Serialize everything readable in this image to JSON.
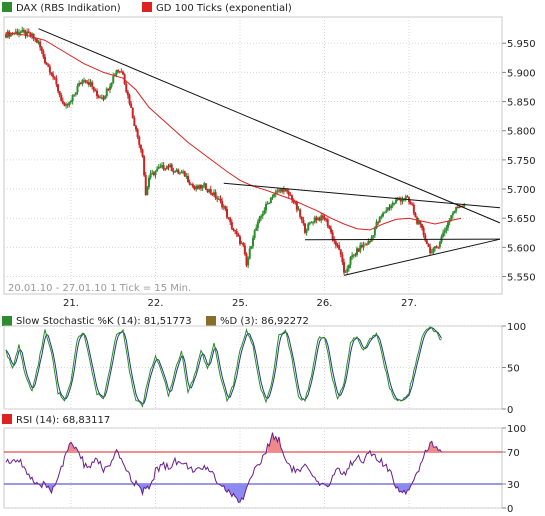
{
  "chart_data": [
    {
      "type": "candlestick",
      "legend": [
        {
          "name": "DAX (RBS Indikation)",
          "color": "#2e8b2e"
        },
        {
          "name": "GD 100 Ticks (exponential)",
          "color": "#dd2222"
        }
      ],
      "range_label": "20.01.10 - 27.01.10   1 Tick = 15 Min.",
      "x_ticks": [
        {
          "label": "21.",
          "t": 20
        },
        {
          "label": "22.",
          "t": 46
        },
        {
          "label": "25.",
          "t": 72
        },
        {
          "label": "26.",
          "t": 98
        },
        {
          "label": "27.",
          "t": 124
        }
      ],
      "ylim": [
        5520,
        5995
      ],
      "y_ticks": [
        {
          "label": "5.950",
          "v": 5950
        },
        {
          "label": "5.900",
          "v": 5900
        },
        {
          "label": "5.850",
          "v": 5850
        },
        {
          "label": "5.800",
          "v": 5800
        },
        {
          "label": "5.750",
          "v": 5750
        },
        {
          "label": "5.700",
          "v": 5700
        },
        {
          "label": "5.650",
          "v": 5650
        },
        {
          "label": "5.600",
          "v": 5600
        },
        {
          "label": "5.550",
          "v": 5550
        }
      ],
      "x_range": [
        0,
        152
      ],
      "price_path": [
        [
          0,
          5965
        ],
        [
          4,
          5970
        ],
        [
          8,
          5962
        ],
        [
          10,
          5950
        ],
        [
          12,
          5920
        ],
        [
          14,
          5900
        ],
        [
          16,
          5870
        ],
        [
          18,
          5838
        ],
        [
          20,
          5850
        ],
        [
          22,
          5875
        ],
        [
          24,
          5890
        ],
        [
          26,
          5880
        ],
        [
          28,
          5860
        ],
        [
          30,
          5858
        ],
        [
          32,
          5880
        ],
        [
          34,
          5905
        ],
        [
          36,
          5900
        ],
        [
          37,
          5870
        ],
        [
          38,
          5850
        ],
        [
          40,
          5800
        ],
        [
          42,
          5760
        ],
        [
          43,
          5690
        ],
        [
          44,
          5720
        ],
        [
          47,
          5735
        ],
        [
          50,
          5740
        ],
        [
          52,
          5730
        ],
        [
          55,
          5725
        ],
        [
          58,
          5700
        ],
        [
          61,
          5705
        ],
        [
          64,
          5690
        ],
        [
          67,
          5670
        ],
        [
          69,
          5640
        ],
        [
          71,
          5620
        ],
        [
          73,
          5600
        ],
        [
          74,
          5568
        ],
        [
          76,
          5620
        ],
        [
          79,
          5660
        ],
        [
          82,
          5690
        ],
        [
          85,
          5700
        ],
        [
          88,
          5685
        ],
        [
          90,
          5660
        ],
        [
          92,
          5630
        ],
        [
          95,
          5650
        ],
        [
          98,
          5650
        ],
        [
          99,
          5640
        ],
        [
          101,
          5610
        ],
        [
          103,
          5590
        ],
        [
          104,
          5552
        ],
        [
          106,
          5580
        ],
        [
          109,
          5600
        ],
        [
          112,
          5610
        ],
        [
          114,
          5640
        ],
        [
          117,
          5665
        ],
        [
          120,
          5680
        ],
        [
          123,
          5685
        ],
        [
          125,
          5670
        ],
        [
          126,
          5650
        ],
        [
          128,
          5630
        ],
        [
          130,
          5600
        ],
        [
          131,
          5590
        ],
        [
          133,
          5605
        ],
        [
          135,
          5630
        ],
        [
          137,
          5655
        ],
        [
          139,
          5670
        ],
        [
          141,
          5675
        ]
      ],
      "ema_path": [
        [
          0,
          5968
        ],
        [
          6,
          5964
        ],
        [
          12,
          5955
        ],
        [
          18,
          5935
        ],
        [
          24,
          5915
        ],
        [
          30,
          5900
        ],
        [
          36,
          5890
        ],
        [
          40,
          5870
        ],
        [
          44,
          5840
        ],
        [
          50,
          5810
        ],
        [
          56,
          5780
        ],
        [
          62,
          5755
        ],
        [
          68,
          5730
        ],
        [
          72,
          5715
        ],
        [
          76,
          5705
        ],
        [
          80,
          5698
        ],
        [
          84,
          5690
        ],
        [
          88,
          5682
        ],
        [
          92,
          5672
        ],
        [
          96,
          5662
        ],
        [
          100,
          5650
        ],
        [
          104,
          5640
        ],
        [
          108,
          5632
        ],
        [
          112,
          5630
        ],
        [
          116,
          5640
        ],
        [
          120,
          5648
        ],
        [
          124,
          5650
        ],
        [
          128,
          5645
        ],
        [
          132,
          5640
        ],
        [
          136,
          5645
        ],
        [
          140,
          5650
        ]
      ],
      "trend_lines": [
        {
          "from": [
            10,
            5975
          ],
          "to": [
            152,
            5642
          ]
        },
        {
          "from": [
            67,
            5710
          ],
          "to": [
            152,
            5668
          ]
        },
        {
          "from": [
            92,
            5613
          ],
          "to": [
            152,
            5614
          ]
        },
        {
          "from": [
            104,
            5552
          ],
          "to": [
            152,
            5614
          ]
        }
      ]
    },
    {
      "type": "line",
      "series": [
        {
          "name": "Slow Stochastic %K (14): 81,51773",
          "color": "#2e8b2e"
        },
        {
          "name": "%D (3): 86,92272",
          "color": "#1a3d7a"
        }
      ],
      "ylim": [
        0,
        100
      ],
      "y_ticks": [
        {
          "label": "100",
          "v": 100
        },
        {
          "label": "50",
          "v": 50
        },
        {
          "label": "0",
          "v": 0
        }
      ],
      "x_range": [
        0,
        152
      ],
      "values_path": [
        [
          0,
          70
        ],
        [
          2,
          48
        ],
        [
          4,
          78
        ],
        [
          6,
          40
        ],
        [
          8,
          22
        ],
        [
          10,
          55
        ],
        [
          12,
          95
        ],
        [
          14,
          70
        ],
        [
          16,
          20
        ],
        [
          18,
          10
        ],
        [
          20,
          35
        ],
        [
          22,
          85
        ],
        [
          24,
          92
        ],
        [
          26,
          55
        ],
        [
          28,
          18
        ],
        [
          30,
          12
        ],
        [
          32,
          50
        ],
        [
          34,
          90
        ],
        [
          36,
          95
        ],
        [
          38,
          45
        ],
        [
          40,
          10
        ],
        [
          42,
          5
        ],
        [
          44,
          40
        ],
        [
          46,
          65
        ],
        [
          48,
          45
        ],
        [
          50,
          15
        ],
        [
          52,
          45
        ],
        [
          54,
          70
        ],
        [
          56,
          20
        ],
        [
          58,
          40
        ],
        [
          60,
          72
        ],
        [
          62,
          48
        ],
        [
          64,
          80
        ],
        [
          66,
          40
        ],
        [
          68,
          10
        ],
        [
          70,
          30
        ],
        [
          72,
          70
        ],
        [
          74,
          95
        ],
        [
          76,
          75
        ],
        [
          78,
          30
        ],
        [
          80,
          8
        ],
        [
          82,
          35
        ],
        [
          84,
          90
        ],
        [
          86,
          95
        ],
        [
          88,
          60
        ],
        [
          90,
          15
        ],
        [
          92,
          10
        ],
        [
          94,
          40
        ],
        [
          96,
          85
        ],
        [
          98,
          88
        ],
        [
          100,
          45
        ],
        [
          102,
          12
        ],
        [
          104,
          30
        ],
        [
          106,
          80
        ],
        [
          108,
          88
        ],
        [
          110,
          70
        ],
        [
          112,
          85
        ],
        [
          114,
          92
        ],
        [
          116,
          60
        ],
        [
          118,
          25
        ],
        [
          120,
          10
        ],
        [
          122,
          12
        ],
        [
          124,
          20
        ],
        [
          126,
          55
        ],
        [
          128,
          88
        ],
        [
          130,
          98
        ],
        [
          132,
          95
        ],
        [
          134,
          82
        ]
      ]
    },
    {
      "type": "line",
      "series": [
        {
          "name": "RSI (14): 68,83117",
          "color": "#6a1d8c"
        }
      ],
      "ylim": [
        0,
        100
      ],
      "y_ticks": [
        {
          "label": "100",
          "v": 100
        },
        {
          "label": "70",
          "v": 70
        },
        {
          "label": "30",
          "v": 30
        },
        {
          "label": "0",
          "v": 0
        }
      ],
      "levels": [
        70,
        30
      ],
      "x_range": [
        0,
        152
      ],
      "values_path": [
        [
          0,
          60
        ],
        [
          2,
          55
        ],
        [
          4,
          62
        ],
        [
          6,
          48
        ],
        [
          8,
          35
        ],
        [
          10,
          25
        ],
        [
          12,
          30
        ],
        [
          14,
          22
        ],
        [
          16,
          40
        ],
        [
          18,
          60
        ],
        [
          20,
          82
        ],
        [
          22,
          72
        ],
        [
          24,
          55
        ],
        [
          26,
          50
        ],
        [
          28,
          62
        ],
        [
          30,
          48
        ],
        [
          32,
          52
        ],
        [
          34,
          68
        ],
        [
          36,
          58
        ],
        [
          38,
          40
        ],
        [
          40,
          30
        ],
        [
          42,
          20
        ],
        [
          44,
          25
        ],
        [
          46,
          45
        ],
        [
          48,
          55
        ],
        [
          50,
          50
        ],
        [
          52,
          60
        ],
        [
          54,
          55
        ],
        [
          56,
          52
        ],
        [
          58,
          48
        ],
        [
          60,
          45
        ],
        [
          62,
          52
        ],
        [
          64,
          40
        ],
        [
          66,
          30
        ],
        [
          68,
          22
        ],
        [
          70,
          15
        ],
        [
          72,
          5
        ],
        [
          74,
          25
        ],
        [
          76,
          45
        ],
        [
          78,
          55
        ],
        [
          80,
          70
        ],
        [
          82,
          92
        ],
        [
          84,
          85
        ],
        [
          86,
          60
        ],
        [
          88,
          50
        ],
        [
          90,
          45
        ],
        [
          92,
          52
        ],
        [
          94,
          40
        ],
        [
          96,
          30
        ],
        [
          98,
          25
        ],
        [
          100,
          35
        ],
        [
          102,
          50
        ],
        [
          104,
          42
        ],
        [
          106,
          55
        ],
        [
          108,
          65
        ],
        [
          110,
          60
        ],
        [
          112,
          68
        ],
        [
          114,
          62
        ],
        [
          116,
          55
        ],
        [
          118,
          45
        ],
        [
          120,
          28
        ],
        [
          122,
          20
        ],
        [
          124,
          25
        ],
        [
          126,
          40
        ],
        [
          128,
          60
        ],
        [
          130,
          78
        ],
        [
          132,
          80
        ],
        [
          134,
          69
        ]
      ]
    }
  ]
}
